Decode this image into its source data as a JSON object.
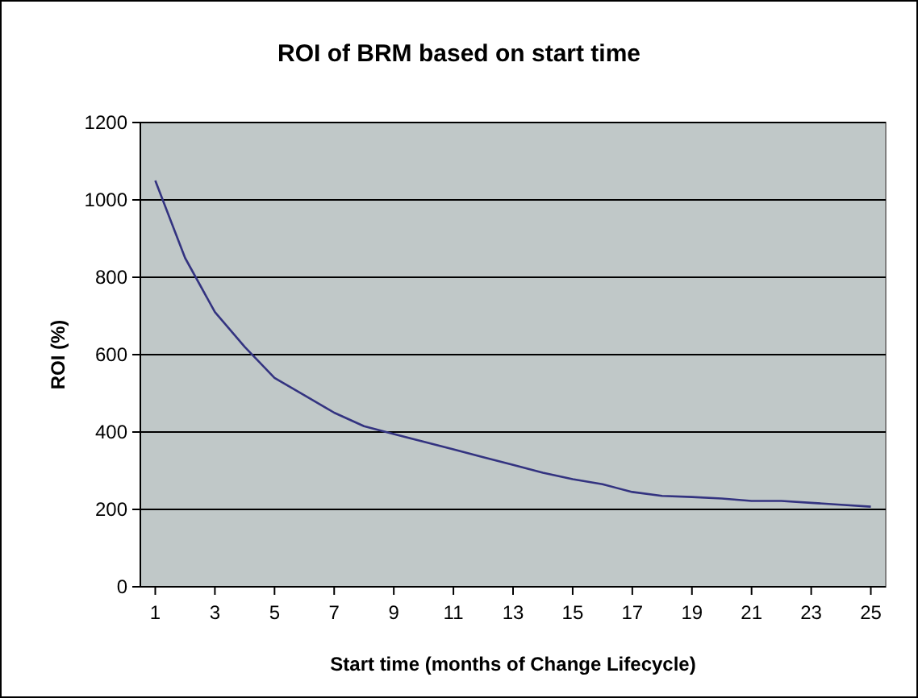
{
  "chart_data": {
    "type": "line",
    "title": "ROI of BRM based on start time",
    "xlabel": "Start time (months of Change Lifecycle)",
    "ylabel": "ROI (%)",
    "x": [
      1,
      2,
      3,
      4,
      5,
      6,
      7,
      8,
      9,
      10,
      11,
      12,
      13,
      14,
      15,
      16,
      17,
      18,
      19,
      20,
      21,
      22,
      23,
      24,
      25
    ],
    "series": [
      {
        "color": "#333380",
        "values": [
          1050,
          850,
          710,
          620,
          540,
          495,
          450,
          415,
          395,
          375,
          355,
          335,
          315,
          295,
          278,
          265,
          245,
          235,
          232,
          228,
          222,
          222,
          217,
          212,
          207
        ]
      }
    ],
    "xlim": [
      0.5,
      25.5
    ],
    "xticks": [
      1,
      3,
      5,
      7,
      9,
      11,
      13,
      15,
      17,
      19,
      21,
      23,
      25
    ],
    "ylim": [
      0,
      1200
    ],
    "yticks": [
      0,
      200,
      400,
      600,
      800,
      1000,
      1200
    ],
    "grid": "y",
    "marker": "none",
    "line_style": "solid"
  }
}
